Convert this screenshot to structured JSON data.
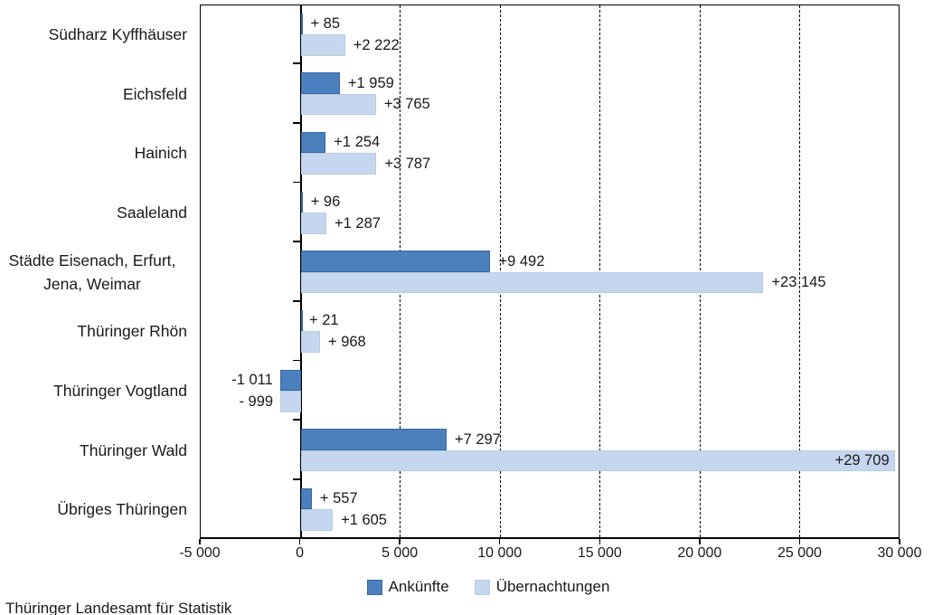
{
  "source_note": "Thüringer Landesamt für Statistik",
  "legend": {
    "items": [
      {
        "label": "Ankünfte",
        "color": "#4b7fbe",
        "border": "#36689e"
      },
      {
        "label": "Übernachtungen",
        "color": "#c5d7ee",
        "border": "#b6cbe7"
      }
    ],
    "position": "bottom-center"
  },
  "chart_data": {
    "type": "bar",
    "orientation": "horizontal",
    "title": "",
    "xlabel": "",
    "ylabel": "",
    "xlim": [
      -5000,
      30000
    ],
    "grid": {
      "vertical_dashed_every": 5000,
      "from": 5000,
      "to": 25000
    },
    "x_ticks": [
      {
        "value": -5000,
        "label": "-5 000"
      },
      {
        "value": 0,
        "label": "0"
      },
      {
        "value": 5000,
        "label": "5 000"
      },
      {
        "value": 10000,
        "label": "10 000"
      },
      {
        "value": 15000,
        "label": "15 000"
      },
      {
        "value": 20000,
        "label": "20 000"
      },
      {
        "value": 25000,
        "label": "25 000"
      },
      {
        "value": 30000,
        "label": "30 000"
      }
    ],
    "categories": [
      "Südharz Kyffhäuser",
      "Eichsfeld",
      "Hainich",
      "Saaleland",
      "Städte Eisenach, Erfurt,\nJena, Weimar",
      "Thüringer Rhön",
      "Thüringer Vogtland",
      "Thüringer Wald",
      "Übriges Thüringen"
    ],
    "series": [
      {
        "name": "Ankünfte",
        "color": "#4b7fbe",
        "values": [
          85,
          1959,
          1254,
          96,
          9492,
          21,
          -1011,
          7297,
          557
        ],
        "labels": [
          "+ 85",
          "+1 959",
          "+1 254",
          "+ 96",
          "+9 492",
          "+ 21",
          "-1 011",
          "+7 297",
          "+ 557"
        ]
      },
      {
        "name": "Übernachtungen",
        "color": "#c5d7ee",
        "values": [
          2222,
          3765,
          3787,
          1287,
          23145,
          968,
          -999,
          29709,
          1605
        ],
        "labels": [
          "+2 222",
          "+3 765",
          "+3 787",
          "+1 287",
          "+23 145",
          "+ 968",
          "- 999",
          "+29 709",
          "+1 605"
        ]
      }
    ],
    "legend_position": "bottom"
  }
}
